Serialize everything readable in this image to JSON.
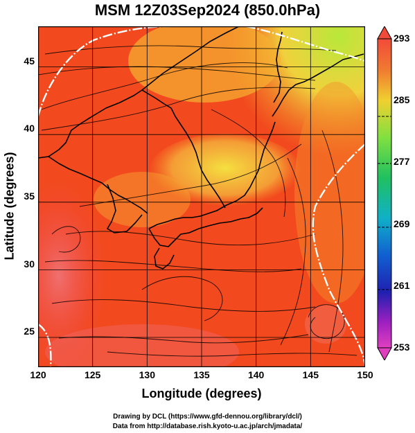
{
  "title": "MSM 12Z03Sep2024 (850.0hPa)",
  "axes": {
    "xlabel": "Longitude (degrees)",
    "ylabel": "Latitude  (degrees)",
    "xticks": [
      {
        "value": 120,
        "label": "120"
      },
      {
        "value": 125,
        "label": "125"
      },
      {
        "value": 130,
        "label": "130"
      },
      {
        "value": 135,
        "label": "135"
      },
      {
        "value": 140,
        "label": "140"
      },
      {
        "value": 145,
        "label": "145"
      },
      {
        "value": 150,
        "label": "150"
      }
    ],
    "yticks": [
      {
        "value": 25,
        "label": "25"
      },
      {
        "value": 30,
        "label": "30"
      },
      {
        "value": 35,
        "label": "35"
      },
      {
        "value": 40,
        "label": "40"
      },
      {
        "value": 45,
        "label": "45"
      }
    ],
    "lon_range": [
      120,
      150
    ],
    "lat_range": [
      22.4,
      47.6
    ]
  },
  "colorbar": {
    "ticks": [
      {
        "value": 293,
        "label": "293"
      },
      {
        "value": 285,
        "label": "285"
      },
      {
        "value": 277,
        "label": "277"
      },
      {
        "value": 269,
        "label": "269"
      },
      {
        "value": 261,
        "label": "261"
      },
      {
        "value": 253,
        "label": "253"
      }
    ],
    "range": [
      253,
      293
    ]
  },
  "credits": {
    "line1": "Drawing by DCL (https://www.gfd-dennou.org/library/dcl/)",
    "line2": "Data from http://database.rish.kyoto-u.ac.jp/arch/jmadata/"
  }
}
